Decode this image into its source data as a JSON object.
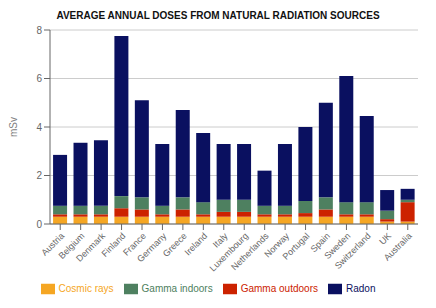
{
  "chart_data": {
    "type": "bar",
    "stacked": true,
    "title": "AVERAGE ANNUAL DOSES FROM NATURAL RADIATION SOURCES",
    "ylabel": "mSv",
    "categories": [
      "Austria",
      "Belgium",
      "Denmark",
      "Finland",
      "France",
      "Germany",
      "Greece",
      "Ireland",
      "Italy",
      "Luxembourg",
      "Netherlands",
      "Norway",
      "Portugal",
      "Spain",
      "Sweden",
      "Switzerland",
      "UK",
      "Australia"
    ],
    "series": [
      {
        "name": "Cosmic rays",
        "color": "#f5a623",
        "values": [
          0.3,
          0.3,
          0.3,
          0.3,
          0.3,
          0.3,
          0.3,
          0.3,
          0.3,
          0.3,
          0.3,
          0.3,
          0.3,
          0.3,
          0.3,
          0.3,
          0.1,
          0.1
        ]
      },
      {
        "name": "Gamma outdoors",
        "color": "#cc2200",
        "values": [
          0.1,
          0.1,
          0.1,
          0.35,
          0.3,
          0.1,
          0.3,
          0.1,
          0.2,
          0.2,
          0.1,
          0.1,
          0.15,
          0.3,
          0.1,
          0.1,
          0.1,
          0.8
        ]
      },
      {
        "name": "Gamma indoors",
        "color": "#4e8060",
        "values": [
          0.35,
          0.35,
          0.35,
          0.5,
          0.5,
          0.35,
          0.5,
          0.5,
          0.5,
          0.5,
          0.35,
          0.35,
          0.5,
          0.5,
          0.5,
          0.5,
          0.35,
          0.1
        ]
      },
      {
        "name": "Radon",
        "color": "#0a1060",
        "values": [
          2.1,
          2.6,
          2.7,
          6.6,
          4.0,
          2.55,
          3.6,
          2.85,
          2.3,
          2.3,
          1.45,
          2.55,
          3.05,
          3.9,
          5.2,
          3.55,
          0.85,
          0.45
        ]
      }
    ],
    "ylim": [
      0,
      8
    ],
    "yticks": [
      0,
      2,
      4,
      6,
      8
    ],
    "grid": true,
    "legend": "bottom"
  }
}
